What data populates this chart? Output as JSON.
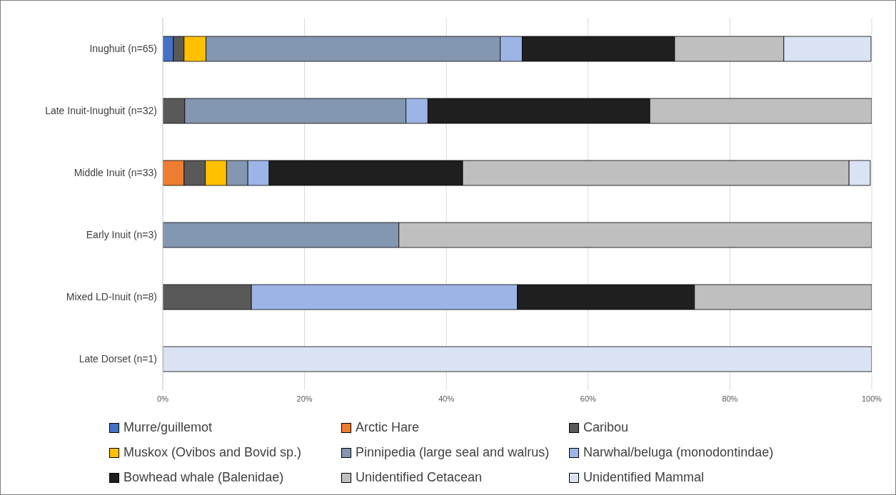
{
  "chart_data": {
    "type": "bar",
    "orientation": "horizontal",
    "stacked": true,
    "categories": [
      "Inughuit (n=65)",
      "Late Inuit-Inughuit (n=32)",
      "Middle Inuit (n=33)",
      "Early Inuit (n=3)",
      "Mixed LD-Inuit (n=8)",
      "Late Dorset (n=1)"
    ],
    "series": [
      {
        "name": "Murre/guillemot",
        "color": "#4472c4",
        "values": [
          1.5,
          null,
          null,
          null,
          null,
          null
        ]
      },
      {
        "name": "Arctic Hare",
        "color": "#ed7d31",
        "values": [
          null,
          null,
          3.0,
          null,
          null,
          null
        ]
      },
      {
        "name": "Caribou",
        "color": "#595959",
        "values": [
          1.5,
          3.1,
          3.0,
          null,
          12.5,
          null
        ]
      },
      {
        "name": "Muskox (Ovibos and Bovid sp.)",
        "color": "#ffc000",
        "values": [
          3.1,
          null,
          3.0,
          null,
          null,
          null
        ]
      },
      {
        "name": "Pinnipedia (large seal and walrus)",
        "color": "#8497b0",
        "values": [
          41.5,
          31.2,
          3.0,
          33.3,
          null,
          null
        ]
      },
      {
        "name": "Narwhal/beluga (monodontindae)",
        "color": "#9db4e6",
        "values": [
          3.1,
          3.1,
          3.0,
          null,
          37.5,
          null
        ]
      },
      {
        "name": "Bowhead whale (Balenidae)",
        "color": "#1f1f1f",
        "values": [
          21.5,
          31.3,
          27.3,
          null,
          25.0,
          null
        ]
      },
      {
        "name": "Unidentified Cetacean",
        "color": "#bfbfbf",
        "values": [
          15.4,
          31.3,
          54.5,
          66.7,
          25.0,
          null
        ]
      },
      {
        "name": "Unidentified Mammal",
        "color": "#dae3f3",
        "values": [
          12.3,
          null,
          3.0,
          null,
          null,
          100
        ]
      }
    ],
    "xlim": [
      0,
      100
    ],
    "xticks": [
      {
        "value": 0,
        "label": "0%"
      },
      {
        "value": 20,
        "label": "20%"
      },
      {
        "value": 40,
        "label": "40%"
      },
      {
        "value": 60,
        "label": "60%"
      },
      {
        "value": 80,
        "label": "80%"
      },
      {
        "value": 100,
        "label": "100%"
      }
    ],
    "grid": "x",
    "legend": "bottom"
  }
}
